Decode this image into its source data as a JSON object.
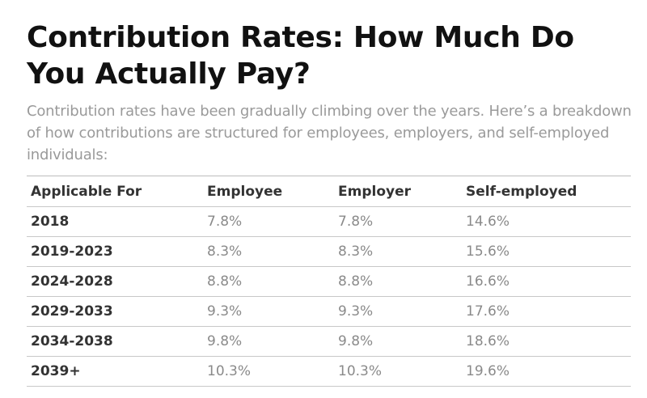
{
  "article": {
    "title": "Contribution Rates: How Much Do You Actually Pay?",
    "intro": "Contribution rates have been gradually climbing over the years. Here’s a breakdown of how contributions are structured for employees, employers, and self-employed individuals:"
  },
  "table": {
    "headers": [
      "Applicable For",
      "Employee",
      "Employer",
      "Self-employed"
    ],
    "rows": [
      [
        "2018",
        "7.8%",
        "7.8%",
        "14.6%"
      ],
      [
        "2019-2023",
        "8.3%",
        "8.3%",
        "15.6%"
      ],
      [
        "2024-2028",
        "8.8%",
        "8.8%",
        "16.6%"
      ],
      [
        "2029-2033",
        "9.3%",
        "9.3%",
        "17.6%"
      ],
      [
        "2034-2038",
        "9.8%",
        "9.8%",
        "18.6%"
      ],
      [
        "2039+",
        "10.3%",
        "10.3%",
        "19.6%"
      ]
    ]
  }
}
